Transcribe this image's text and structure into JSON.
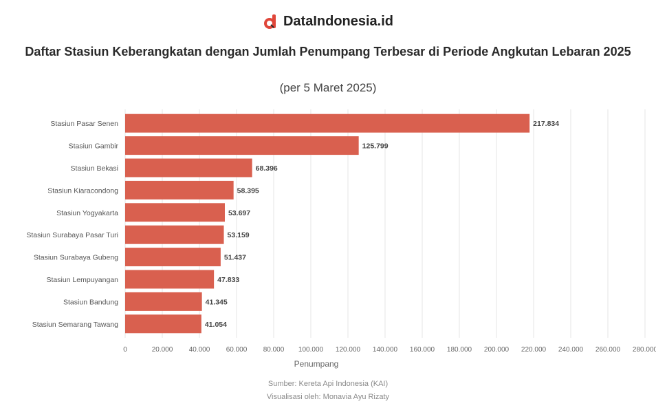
{
  "brand": {
    "name": "DataIndonesia.id",
    "icon": "dataindonesia-logo-icon",
    "accent": "#e0463a"
  },
  "title": "Daftar Stasiun Keberangkatan dengan Jumlah Penumpang Terbesar di Periode Angkutan Lebaran 2025",
  "subtitle": "(per 5 Maret 2025)",
  "footer": {
    "source": "Sumber: Kereta Api Indonesia (KAI)",
    "credit": "Visualisasi oleh: Monavia Ayu Rizaty"
  },
  "chart_data": {
    "type": "bar",
    "orientation": "horizontal",
    "categories": [
      "Stasiun Pasar Senen",
      "Stasiun Gambir",
      "Stasiun Bekasi",
      "Stasiun Kiaracondong",
      "Stasiun Yogyakarta",
      "Stasiun Surabaya Pasar Turi",
      "Stasiun Surabaya Gubeng",
      "Stasiun Lempuyangan",
      "Stasiun Bandung",
      "Stasiun Semarang Tawang"
    ],
    "values": [
      217834,
      125799,
      68396,
      58395,
      53697,
      53159,
      51437,
      47833,
      41345,
      41054
    ],
    "value_labels": [
      "217.834",
      "125.799",
      "68.396",
      "58.395",
      "53.697",
      "53.159",
      "51.437",
      "47.833",
      "41.345",
      "41.054"
    ],
    "xlabel": "Penumpang",
    "xlim": [
      0,
      280000
    ],
    "xticks": [
      0,
      20000,
      40000,
      60000,
      80000,
      100000,
      120000,
      140000,
      160000,
      180000,
      200000,
      220000,
      240000,
      260000,
      280000
    ],
    "xtick_labels": [
      "0",
      "20.000",
      "40.000",
      "60.000",
      "80.000",
      "100.000",
      "120.000",
      "140.000",
      "160.000",
      "180.000",
      "200.000",
      "220.000",
      "240.000",
      "260.000",
      "280.000"
    ],
    "grid": true,
    "bar_color": "#d9604f"
  }
}
